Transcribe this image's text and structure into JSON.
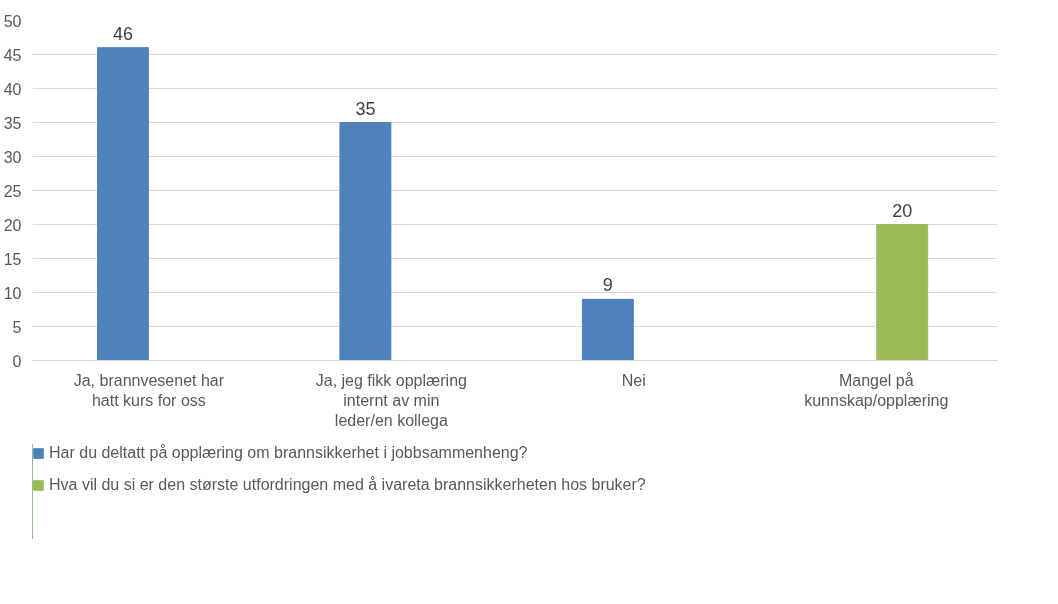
{
  "chart_data": {
    "type": "bar",
    "categories": [
      "Ja, brannvesenet har hatt kurs for oss",
      "Ja, jeg fikk opplæring internt av min leder/en kollega",
      "Nei",
      "Mangel på kunnskap/opplæring"
    ],
    "series": [
      {
        "name": "Har du deltatt på opplæring om brannsikkerhet i jobbsammenheng?",
        "color": "#4f81bd",
        "values": [
          46,
          35,
          9,
          null
        ]
      },
      {
        "name": "Hva vil du si er den største utfordringen med å ivareta brannsikkerheten hos bruker?",
        "color": "#9bbb59",
        "values": [
          null,
          null,
          null,
          20
        ]
      }
    ],
    "ylim": [
      0,
      50
    ],
    "yticks": [
      0,
      5,
      10,
      15,
      20,
      25,
      30,
      35,
      40,
      45,
      50
    ],
    "grid": "y",
    "legend": "bottom",
    "data_labels": true
  }
}
